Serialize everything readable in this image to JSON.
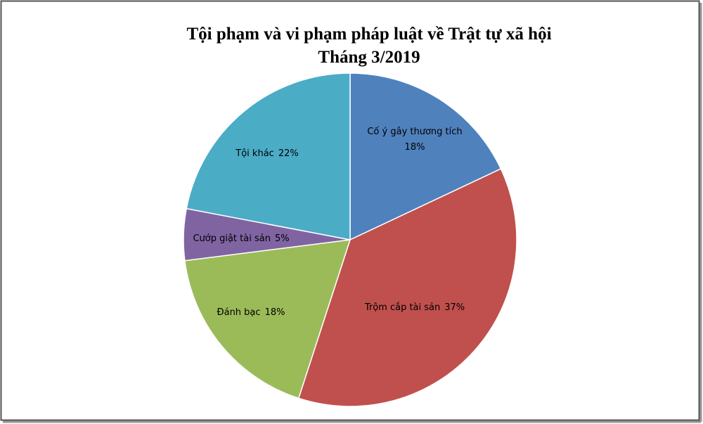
{
  "chart_data": {
    "type": "pie",
    "title": "Tội phạm và vi phạm pháp luật về Trật  tự xã hội",
    "subtitle": "Tháng 3/2019",
    "categories": [
      "Cố ý gây thương tích",
      "Trộm cắp tài sản",
      "Đánh bạc",
      "Cướp giật tài sản",
      "Tội khác"
    ],
    "values": [
      18,
      37,
      18,
      5,
      22
    ],
    "value_labels": [
      "18%",
      "37%",
      "18%",
      "5%",
      "22%"
    ],
    "colors": [
      "#4f81bd",
      "#c0504d",
      "#9bbb59",
      "#8064a2",
      "#4bacc6"
    ]
  }
}
